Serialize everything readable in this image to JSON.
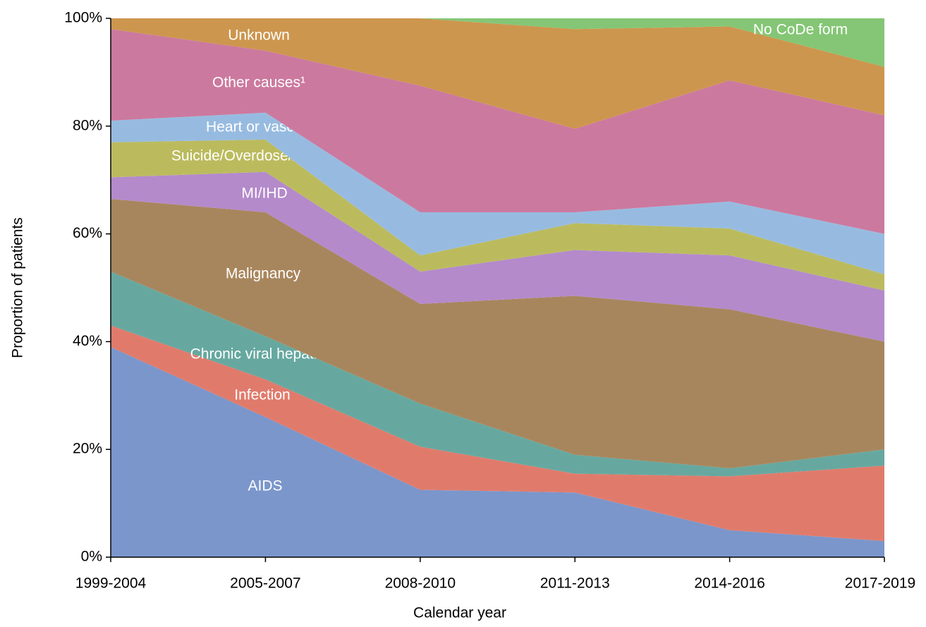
{
  "chart_data": {
    "type": "stacked_area",
    "x_label": "Calendar year",
    "y_label": "Proportion of patients",
    "categories": [
      "1999-2004",
      "2005-2007",
      "2008-2010",
      "2011-2013",
      "2014-2016",
      "2017-2019"
    ],
    "ylim": [
      0,
      100
    ],
    "yticks": [
      {
        "value": 0,
        "label": "0%"
      },
      {
        "value": 20,
        "label": "20%"
      },
      {
        "value": 40,
        "label": "40%"
      },
      {
        "value": 60,
        "label": "60%"
      },
      {
        "value": 80,
        "label": "80%"
      },
      {
        "value": 100,
        "label": "100%"
      }
    ],
    "series": [
      {
        "name": "AIDS",
        "color": "#7b96cb",
        "values": [
          39,
          26,
          12.5,
          12,
          5,
          3
        ]
      },
      {
        "name": "Infection",
        "color": "#e07b6c",
        "values": [
          4,
          7,
          8,
          3.5,
          10,
          14
        ]
      },
      {
        "name": "Chronic viral hepatitis",
        "color": "#66a8a0",
        "values": [
          10,
          8,
          8,
          3.5,
          1.5,
          3
        ]
      },
      {
        "name": "Malignancy",
        "color": "#a8865d",
        "values": [
          13.5,
          23,
          18.5,
          29.5,
          29.5,
          20
        ]
      },
      {
        "name": "MI/IHD",
        "color": "#b48acb",
        "values": [
          4,
          7.5,
          6,
          8.5,
          10,
          9.5
        ]
      },
      {
        "name": "Suicide/Overdose/Accident",
        "color": "#bbbb5e",
        "values": [
          6.5,
          6,
          3,
          5,
          5,
          3
        ]
      },
      {
        "name": "Heart or vascular",
        "color": "#97bbe0",
        "values": [
          4,
          5,
          8,
          2,
          5,
          7.5
        ]
      },
      {
        "name": "Other causes¹",
        "color": "#cc799f",
        "values": [
          17,
          11.5,
          23.5,
          15.5,
          22.5,
          22
        ]
      },
      {
        "name": "Unknown",
        "color": "#cd964e",
        "values": [
          2,
          6,
          12.5,
          18.5,
          10,
          9
        ]
      },
      {
        "name": "No CoDe form",
        "color": "#84c675",
        "values": [
          0,
          0,
          0,
          2,
          1.5,
          9
        ]
      }
    ]
  }
}
